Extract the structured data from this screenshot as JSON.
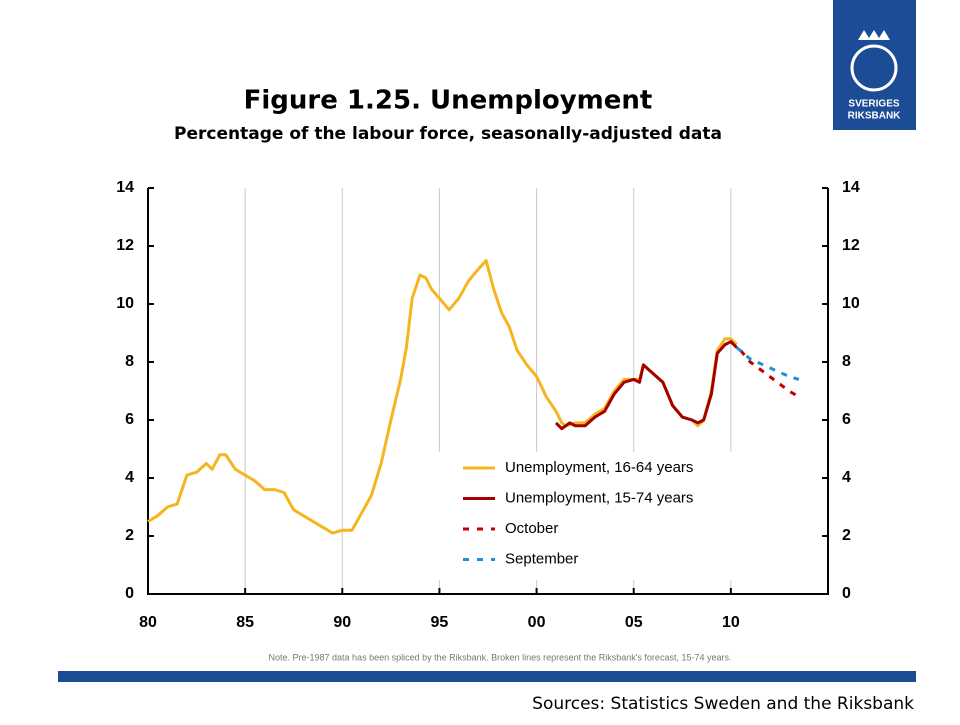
{
  "logo": [
    "SVERIGES",
    "RIKSBANK"
  ],
  "chart_data": {
    "type": "line",
    "title": "Figure 1.25. Unemployment",
    "subtitle": "Percentage of the labour force, seasonally-adjusted data",
    "note": "Note. Pre-1987 data has been spliced by the Riksbank. Broken lines represent the Riksbank's forecast, 15-74 years.",
    "source": "Sources: Statistics Sweden and the Riksbank",
    "xlim": [
      1980,
      2015
    ],
    "xticks": [
      {
        "value": 1980,
        "label": "80"
      },
      {
        "value": 1985,
        "label": "85"
      },
      {
        "value": 1990,
        "label": "90"
      },
      {
        "value": 1995,
        "label": "95"
      },
      {
        "value": 2000,
        "label": "00"
      },
      {
        "value": 2005,
        "label": "05"
      },
      {
        "value": 2010,
        "label": "10"
      }
    ],
    "ylim": [
      0,
      14
    ],
    "yticks": [
      0,
      2,
      4,
      6,
      8,
      10,
      12,
      14
    ],
    "y2lim": [
      0,
      14
    ],
    "y2ticks": [
      0,
      2,
      4,
      6,
      8,
      10,
      12,
      14
    ],
    "grid": "x",
    "series": [
      {
        "name": "Unemployment, 16-64 years",
        "color": "#f5b51e",
        "dashed": false,
        "x": [
          1980.0,
          1980.5,
          1981.0,
          1981.5,
          1982.0,
          1982.5,
          1983.0,
          1983.3,
          1983.7,
          1984.0,
          1984.5,
          1985.0,
          1985.5,
          1986.0,
          1986.5,
          1987.0,
          1987.5,
          1988.0,
          1988.5,
          1989.0,
          1989.5,
          1990.0,
          1990.5,
          1991.0,
          1991.5,
          1992.0,
          1992.5,
          1993.0,
          1993.3,
          1993.6,
          1994.0,
          1994.3,
          1994.6,
          1995.0,
          1995.5,
          1996.0,
          1996.5,
          1997.0,
          1997.4,
          1997.8,
          1998.2,
          1998.6,
          1999.0,
          1999.5,
          2000.0,
          2000.5,
          2001.0,
          2001.3,
          2001.5,
          2002.0,
          2002.5,
          2003.0,
          2003.5,
          2004.0,
          2004.5,
          2005.0,
          2005.3,
          2005.5,
          2006.0,
          2006.5,
          2007.0,
          2007.5,
          2008.0,
          2008.3,
          2008.6,
          2009.0,
          2009.3,
          2009.7,
          2010.0,
          2010.3
        ],
        "values": [
          2.5,
          2.7,
          3.0,
          3.1,
          4.1,
          4.2,
          4.5,
          4.3,
          4.8,
          4.8,
          4.3,
          4.1,
          3.9,
          3.6,
          3.6,
          3.5,
          2.9,
          2.7,
          2.5,
          2.3,
          2.1,
          2.2,
          2.2,
          2.8,
          3.4,
          4.5,
          6.0,
          7.4,
          8.5,
          10.2,
          11.0,
          10.9,
          10.5,
          10.2,
          9.8,
          10.2,
          10.8,
          11.2,
          11.5,
          10.5,
          9.7,
          9.2,
          8.4,
          7.9,
          7.5,
          6.8,
          6.3,
          5.9,
          5.8,
          5.9,
          5.9,
          6.2,
          6.4,
          7.0,
          7.4,
          7.4,
          7.4,
          7.9,
          7.6,
          7.3,
          6.5,
          6.1,
          6.0,
          5.8,
          6.0,
          7.0,
          8.4,
          8.8,
          8.8,
          8.6
        ]
      },
      {
        "name": "Unemployment, 15-74 years",
        "color": "#a50000",
        "dashed": false,
        "x": [
          2001.0,
          2001.3,
          2001.7,
          2002.0,
          2002.5,
          2003.0,
          2003.5,
          2004.0,
          2004.5,
          2005.0,
          2005.3,
          2005.5,
          2006.0,
          2006.5,
          2007.0,
          2007.5,
          2008.0,
          2008.3,
          2008.6,
          2009.0,
          2009.3,
          2009.7,
          2010.0,
          2010.3
        ],
        "values": [
          5.9,
          5.7,
          5.9,
          5.8,
          5.8,
          6.1,
          6.3,
          6.9,
          7.3,
          7.4,
          7.3,
          7.9,
          7.6,
          7.3,
          6.5,
          6.1,
          6.0,
          5.9,
          6.0,
          6.9,
          8.3,
          8.6,
          8.7,
          8.5
        ]
      },
      {
        "name": "October",
        "color": "#c00000",
        "dashed": true,
        "x": [
          2010.5,
          2011.0,
          2012.0,
          2013.0,
          2013.5
        ],
        "values": [
          8.4,
          8.0,
          7.5,
          7.0,
          6.8
        ]
      },
      {
        "name": "September",
        "color": "#1f8fd6",
        "dashed": true,
        "x": [
          2010.3,
          2011.0,
          2012.0,
          2013.0,
          2013.5
        ],
        "values": [
          8.5,
          8.1,
          7.8,
          7.5,
          7.4
        ]
      }
    ]
  }
}
